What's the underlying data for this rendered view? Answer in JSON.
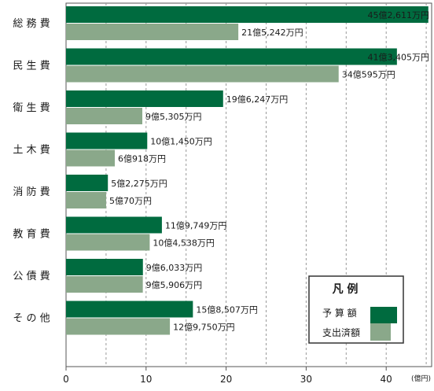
{
  "chart_data": {
    "type": "bar",
    "orientation": "horizontal",
    "categories": [
      "総務費",
      "民生費",
      "衛生費",
      "土木費",
      "消防費",
      "教育費",
      "公債費",
      "その他"
    ],
    "category_display": [
      "総 務 費",
      "民 生 費",
      "衛 生 費",
      "土 木 費",
      "消 防 費",
      "教 育 費",
      "公 債 費",
      "そ の 他"
    ],
    "series": [
      {
        "name": "予算額",
        "color": "#006b3f",
        "values": [
          45.2611,
          41.3405,
          19.6247,
          10.145,
          5.2275,
          11.9749,
          9.6033,
          15.8507
        ],
        "labels": [
          "45億2,611万円",
          "41億3,405万円",
          "19億6,247万円",
          "10億1,450万円",
          "5億2,275万円",
          "11億9,749万円",
          "9億6,033万円",
          "15億8,507万円"
        ]
      },
      {
        "name": "支出済額",
        "color": "#8aa88a",
        "values": [
          21.5242,
          34.0595,
          9.5305,
          6.0918,
          5.007,
          10.4538,
          9.5906,
          12.975
        ],
        "labels": [
          "21億5,242万円",
          "34億595万円",
          "9億5,305万円",
          "6億918万円",
          "5億70万円",
          "10億4,538万円",
          "9億5,906万円",
          "12億9,750万円"
        ]
      }
    ],
    "xlim": [
      0,
      46
    ],
    "xticks": [
      0,
      10,
      20,
      30,
      40
    ],
    "xunit": "(億円)",
    "grid": "vertical dashed",
    "legend": {
      "title": "凡 例",
      "position": "bottom-right",
      "items": [
        "予 算 額",
        "支出済額"
      ]
    }
  }
}
